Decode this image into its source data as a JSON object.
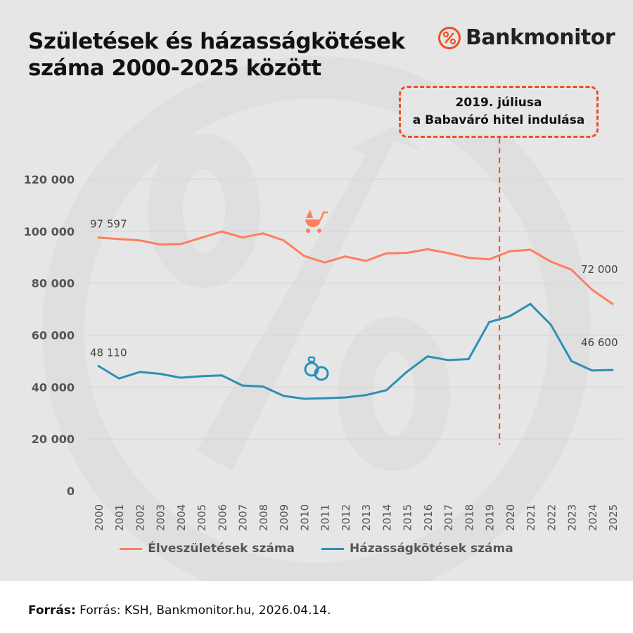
{
  "title_line1": "Születések és házasságkötések",
  "title_line2": "száma 2000-2025 között",
  "logo": {
    "text": "Bankmonitor",
    "icon": "percent-circle-icon",
    "color": "#f04e23"
  },
  "callout": {
    "line1": "2019. júliusa",
    "line2": "a Babaváró hitel indulása",
    "color": "#f04e23"
  },
  "footer": {
    "label": "Forrás:",
    "text": "Forrás: KSH, Bankmonitor.hu, 2026.04.14."
  },
  "chart_data": {
    "type": "line",
    "x": [
      2000,
      2001,
      2002,
      2003,
      2004,
      2005,
      2006,
      2007,
      2008,
      2009,
      2010,
      2011,
      2012,
      2013,
      2014,
      2015,
      2016,
      2017,
      2018,
      2019,
      2020,
      2021,
      2022,
      2023,
      2024,
      2025
    ],
    "ylim": [
      0,
      120000
    ],
    "yticks": [
      0,
      20000,
      40000,
      60000,
      80000,
      100000,
      120000
    ],
    "ytick_labels": [
      "0",
      "20 000",
      "40 000",
      "60 000",
      "80 000",
      "100 000",
      "120 000"
    ],
    "grid": true,
    "legend_placement": "bottom",
    "annotation_year": 2019.5,
    "series": [
      {
        "name": "Élveszületések száma",
        "color": "#ff7f5c",
        "icon": "baby-carriage-icon",
        "values": [
          97597,
          97000,
          96500,
          94900,
          95100,
          97500,
          99900,
          97600,
          99200,
          96500,
          90500,
          88000,
          90300,
          88600,
          91500,
          91700,
          93100,
          91600,
          89800,
          89200,
          92300,
          92900,
          88300,
          85200,
          77500,
          72000
        ],
        "first_label": "97 597",
        "last_label": "72 000"
      },
      {
        "name": "Házasságkötések száma",
        "color": "#2e8fb5",
        "icon": "wedding-rings-icon",
        "values": [
          48110,
          43300,
          45800,
          45100,
          43600,
          44200,
          44500,
          40600,
          40200,
          36600,
          35500,
          35700,
          36000,
          36900,
          38800,
          45900,
          51800,
          50400,
          50800,
          65000,
          67300,
          72000,
          64000,
          50000,
          46400,
          46600
        ],
        "first_label": "48 110",
        "last_label": "46 600"
      }
    ]
  }
}
